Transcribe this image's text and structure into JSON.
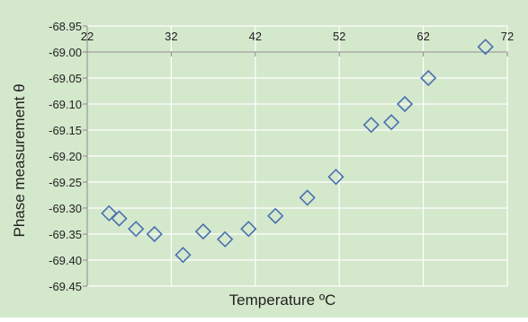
{
  "chart_data": {
    "type": "scatter",
    "title": "",
    "xlabel": "Temperature ºC",
    "ylabel": "Phase measurement θ",
    "xlim": [
      22,
      72
    ],
    "ylim": [
      -69.45,
      -68.95
    ],
    "xticks": [
      22,
      32,
      42,
      52,
      62,
      72
    ],
    "yticks": [
      -68.95,
      -69.0,
      -69.05,
      -69.1,
      -69.15,
      -69.2,
      -69.25,
      -69.3,
      -69.35,
      -69.4,
      -69.45
    ],
    "xtick_labels": [
      "22",
      "32",
      "42",
      "52",
      "62",
      "72"
    ],
    "ytick_labels": [
      "-68.95",
      "-69.00",
      "-69.05",
      "-69.10",
      "-69.15",
      "-69.20",
      "-69.25",
      "-69.30",
      "-69.35",
      "-69.40",
      "-69.45"
    ],
    "grid": true,
    "legend": "none",
    "colors": {
      "background": "#d4e8cc",
      "grid": "#ffffff",
      "marker": "#4a70b0"
    },
    "series": [
      {
        "marker": "diamond",
        "x": [
          24.6,
          25.8,
          27.8,
          30.0,
          33.4,
          35.8,
          38.4,
          41.2,
          44.4,
          48.2,
          51.6,
          55.8,
          58.2,
          59.8,
          62.6,
          69.4
        ],
        "y": [
          -69.31,
          -69.32,
          -69.34,
          -69.35,
          -69.39,
          -69.345,
          -69.36,
          -69.34,
          -69.315,
          -69.28,
          -69.24,
          -69.14,
          -69.135,
          -69.1,
          -69.05,
          -68.99
        ]
      }
    ]
  }
}
